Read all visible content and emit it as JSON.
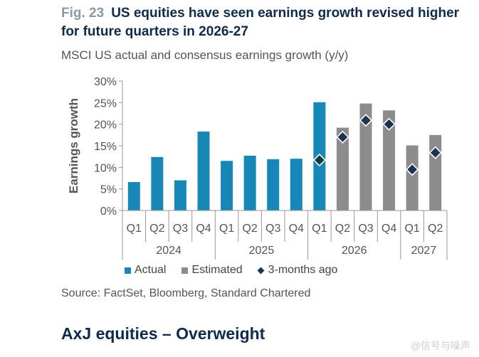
{
  "header": {
    "fig_label": "Fig. 23",
    "title": "US equities have seen earnings growth revised higher for future quarters in 2026-27",
    "subtitle": "MSCI US actual and consensus earnings growth (y/y)"
  },
  "source": "Source: FactSet, Bloomberg, Standard Chartered",
  "section_heading": "AxJ equities – Overweight",
  "watermark": "@信号与噪声",
  "colors": {
    "actual": "#1787b8",
    "estimated": "#8c8c8c",
    "marker": "#1b3550",
    "axis": "#999999",
    "text": "#555555"
  },
  "chart_data": {
    "type": "bar",
    "ylabel": "Earnings growth",
    "ylim": [
      0,
      30
    ],
    "yticks": [
      "0%",
      "5%",
      "10%",
      "15%",
      "20%",
      "25%",
      "30%"
    ],
    "grid": false,
    "legend_position": "bottom-left",
    "quarters": [
      "Q1",
      "Q2",
      "Q3",
      "Q4",
      "Q1",
      "Q2",
      "Q3",
      "Q4",
      "Q1",
      "Q2",
      "Q3",
      "Q4",
      "Q1",
      "Q2"
    ],
    "years": [
      {
        "label": "2024",
        "span": 4
      },
      {
        "label": "2025",
        "span": 4
      },
      {
        "label": "2026",
        "span": 4
      },
      {
        "label": "2027",
        "span": 2
      }
    ],
    "series": [
      {
        "name": "Actual",
        "values": [
          6.6,
          12.4,
          7.0,
          18.3,
          11.5,
          12.7,
          11.9,
          12.0,
          25.1,
          null,
          null,
          null,
          null,
          null
        ]
      },
      {
        "name": "Estimated",
        "values": [
          null,
          null,
          null,
          null,
          null,
          null,
          null,
          null,
          null,
          19.2,
          24.8,
          23.2,
          15.1,
          17.5
        ]
      },
      {
        "name": "3-months ago",
        "values": [
          null,
          null,
          null,
          null,
          null,
          null,
          null,
          null,
          11.7,
          17.0,
          20.9,
          20.0,
          9.5,
          13.4
        ]
      }
    ]
  }
}
